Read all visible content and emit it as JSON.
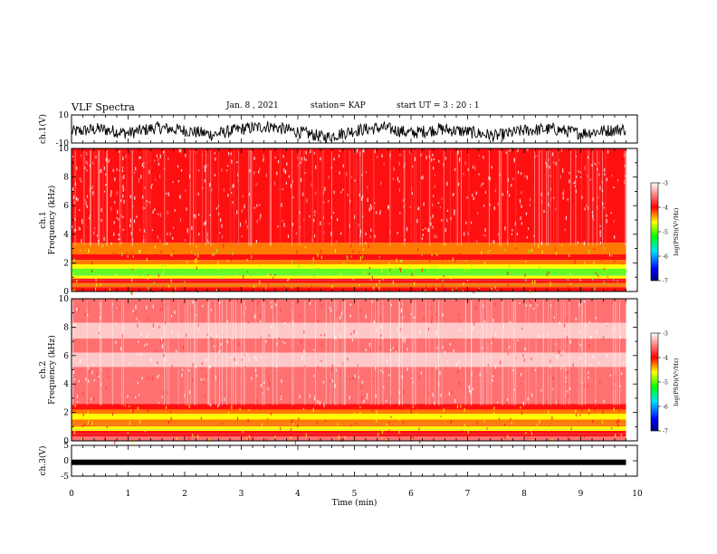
{
  "header": {
    "title": "VLF Spectra",
    "date": "Jan. 8 , 2021",
    "station": "station= KAP",
    "start": "start UT =  3 : 20 : 1"
  },
  "chart_data": [
    {
      "type": "line",
      "panel": "ch.1 waveform",
      "ylabel": "ch.1(V)",
      "ylim": [
        -10,
        10
      ],
      "yticks": [
        "10",
        "-10"
      ],
      "xlim": [
        0,
        10
      ],
      "x": [
        0,
        0.5,
        1,
        1.5,
        2,
        2.5,
        3,
        3.5,
        4,
        4.5,
        5,
        5.5,
        6,
        6.5,
        7,
        7.5,
        8,
        8.5,
        9,
        9.5,
        9.8
      ],
      "y": [
        -2,
        0,
        -3,
        1,
        -1,
        -4,
        0,
        2,
        -2,
        -6,
        -1,
        1,
        -3,
        0,
        -2,
        -5,
        -1,
        0,
        -3,
        -1,
        0
      ],
      "color": "#000000"
    },
    {
      "type": "heatmap",
      "panel": "ch.1 spectrogram",
      "ylabel": "ch.1 Frequency (kHz)",
      "ylim": [
        0,
        10
      ],
      "yticks": [
        "0",
        "2",
        "4",
        "6",
        "8",
        "10"
      ],
      "xlim": [
        0,
        9.8
      ],
      "colorbar": {
        "label": "log(PSD)(V²/Hz)",
        "range": [
          -7,
          -3
        ],
        "ticks": [
          "-3",
          "-4",
          "-5",
          "-6",
          "-7"
        ]
      }
    },
    {
      "type": "heatmap",
      "panel": "ch.2 spectrogram",
      "ylabel": "ch.2 Frequency (kHz)",
      "ylim": [
        0,
        10
      ],
      "yticks": [
        "0",
        "2",
        "4",
        "6",
        "8",
        "10"
      ],
      "xlim": [
        0,
        9.8
      ],
      "colorbar": {
        "label": "log(PSD)(V²/Hz)",
        "range": [
          -7,
          -3
        ],
        "ticks": [
          "-3",
          "-4",
          "-5",
          "-6",
          "-7"
        ]
      }
    },
    {
      "type": "line",
      "panel": "ch.3 waveform",
      "ylabel": "ch.3(V)",
      "ylim": [
        -5,
        5
      ],
      "yticks": [
        "5",
        "0",
        "-5"
      ],
      "xlim": [
        0,
        10
      ],
      "x": [
        0,
        9.8
      ],
      "y": [
        -0.5,
        -0.5
      ],
      "color": "#000000"
    }
  ],
  "xaxis": {
    "label": "Time (min)",
    "ticks": [
      "0",
      "1",
      "2",
      "3",
      "4",
      "5",
      "6",
      "7",
      "8",
      "9",
      "10"
    ]
  }
}
